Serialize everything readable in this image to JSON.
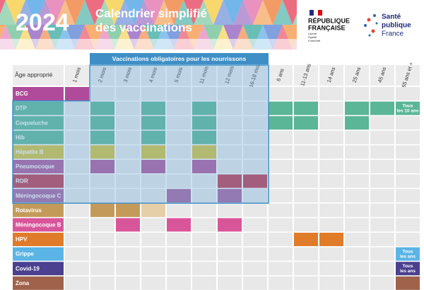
{
  "header": {
    "year": "2024",
    "title_lines": [
      "Calendrier simplifié",
      "des vaccinations"
    ]
  },
  "logos": {
    "republique": [
      "RÉPUBLIQUE",
      "FRANÇAISE"
    ],
    "devise": [
      "Liberté",
      "Égalité",
      "Fraternité"
    ],
    "spf": [
      "Santé",
      "publique",
      "France"
    ]
  },
  "table": {
    "corner": "Âge approprié",
    "mandatory_label": "Vaccinations obligatoires pour les nourrissons",
    "ages": [
      "1 mois",
      "2 mois",
      "3 mois",
      "4 mois",
      "5 mois",
      "11 mois",
      "12 mois",
      "16-18 mois",
      "6 ans",
      "11-13 ans",
      "14 ans",
      "25 ans",
      "45 ans",
      "65 ans et +"
    ],
    "rows": [
      {
        "label": "BCG",
        "color": "#b04a9a",
        "doses": [
          "1 mois"
        ]
      },
      {
        "label": "DTP",
        "color": "#5bb597",
        "doses": [
          "2 mois",
          "4 mois",
          "11 mois",
          "6 ans",
          "11-13 ans",
          "25 ans",
          "45 ans",
          {
            "age": "65 ans et +",
            "text": "Tous les 10 ans"
          }
        ]
      },
      {
        "label": "Coqueluche",
        "color": "#5bb597",
        "doses": [
          "2 mois",
          "4 mois",
          "11 mois",
          "6 ans",
          "11-13 ans",
          "25 ans"
        ]
      },
      {
        "label": "Hib",
        "color": "#5bb597",
        "doses": [
          "2 mois",
          "4 mois",
          "11 mois"
        ]
      },
      {
        "label": "Hépatite B",
        "color": "#d8c23a",
        "doses": [
          "2 mois",
          "4 mois",
          "11 mois"
        ]
      },
      {
        "label": "Pneumocoque",
        "color": "#b0569a",
        "doses": [
          "2 mois",
          "4 mois",
          "11 mois"
        ]
      },
      {
        "label": "ROR",
        "color": "#c0374d",
        "doses": [
          "12 mois",
          "16-18 mois"
        ]
      },
      {
        "label": "Méningocoque C",
        "color": "#a8619f",
        "doses": [
          "5 mois",
          "12 mois"
        ]
      },
      {
        "label": "Rotavirus",
        "color": "#c49a5a",
        "doses": [
          "2 mois",
          "3 mois",
          {
            "age": "4 mois",
            "color": "#e5cfa8"
          }
        ]
      },
      {
        "label": "Méningocoque B",
        "color": "#d8559a",
        "doses": [
          "3 mois",
          "5 mois",
          "12 mois"
        ]
      },
      {
        "label": "HPV",
        "color": "#e07b2a",
        "doses": [
          "11-13 ans",
          "14 ans"
        ]
      },
      {
        "label": "Grippe",
        "color": "#5ab4e6",
        "doses": [
          {
            "age": "65 ans et +",
            "text": "Tous les ans"
          }
        ]
      },
      {
        "label": "Covid-19",
        "color": "#4b3f8f",
        "doses": [
          {
            "age": "65 ans et +",
            "text": "Tous les ans"
          }
        ]
      },
      {
        "label": "Zona",
        "color": "#a0624a",
        "doses": [
          "65 ans et +"
        ]
      }
    ]
  }
}
